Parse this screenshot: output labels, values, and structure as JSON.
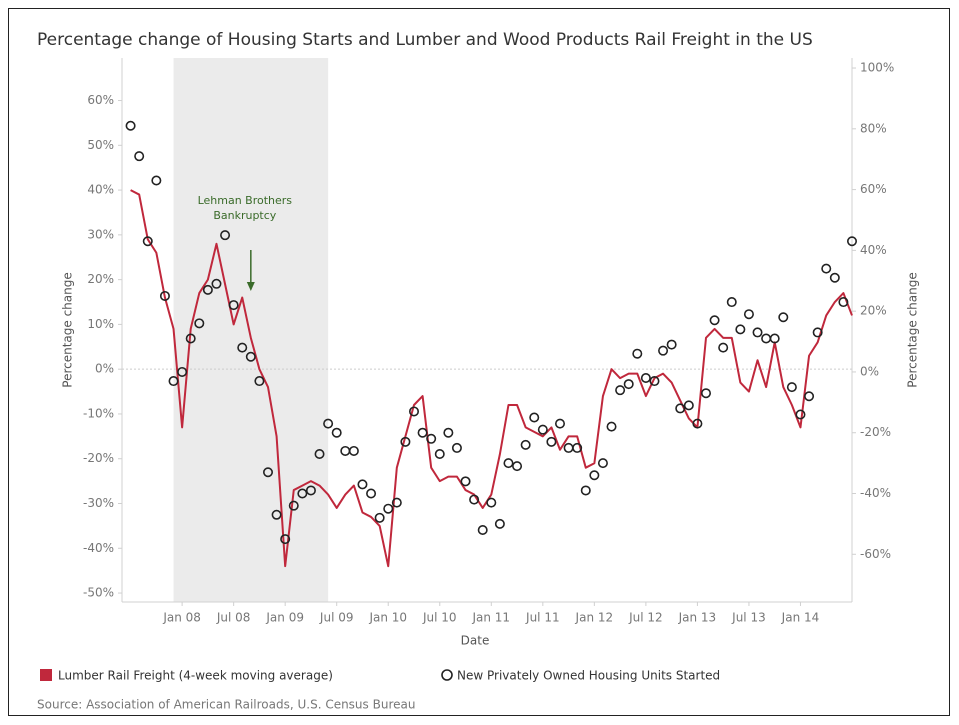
{
  "chart_data": {
    "type": "line",
    "title": "Percentage change of Housing Starts and Lumber and Wood Products Rail Freight in the US",
    "x_label": "Date",
    "y_label": "Percentage change",
    "y2_label": "Percentage change",
    "source": "Source: Association of American Railroads, U.S. Census Bureau",
    "x": [
      "2007-07",
      "2007-08",
      "2007-09",
      "2007-10",
      "2007-11",
      "2007-12",
      "2008-01",
      "2008-02",
      "2008-03",
      "2008-04",
      "2008-05",
      "2008-06",
      "2008-07",
      "2008-08",
      "2008-09",
      "2008-10",
      "2008-11",
      "2008-12",
      "2009-01",
      "2009-02",
      "2009-03",
      "2009-04",
      "2009-05",
      "2009-06",
      "2009-07",
      "2009-08",
      "2009-09",
      "2009-10",
      "2009-11",
      "2009-12",
      "2010-01",
      "2010-02",
      "2010-03",
      "2010-04",
      "2010-05",
      "2010-06",
      "2010-07",
      "2010-08",
      "2010-09",
      "2010-10",
      "2010-11",
      "2010-12",
      "2011-01",
      "2011-02",
      "2011-03",
      "2011-04",
      "2011-05",
      "2011-06",
      "2011-07",
      "2011-08",
      "2011-09",
      "2011-10",
      "2011-11",
      "2011-12",
      "2012-01",
      "2012-02",
      "2012-03",
      "2012-04",
      "2012-05",
      "2012-06",
      "2012-07",
      "2012-08",
      "2012-09",
      "2012-10",
      "2012-11",
      "2012-12",
      "2013-01",
      "2013-02",
      "2013-03",
      "2013-04",
      "2013-05",
      "2013-06",
      "2013-07",
      "2013-08",
      "2013-09",
      "2013-10",
      "2013-11",
      "2013-12",
      "2014-01",
      "2014-02",
      "2014-03",
      "2014-04",
      "2014-05",
      "2014-06",
      "2014-07"
    ],
    "series": [
      {
        "name": "Lumber Rail Freight (4-week moving average)",
        "type": "line",
        "axis": "y",
        "color": "#c0283c",
        "values": [
          40,
          39,
          29,
          26,
          16,
          9,
          -13,
          9,
          17,
          20,
          28,
          19,
          10,
          16,
          7,
          0,
          -4,
          -15,
          -44,
          -27,
          -26,
          -25,
          -26,
          -28,
          -31,
          -28,
          -26,
          -32,
          -33,
          -35,
          -44,
          -22,
          -15,
          -8,
          -6,
          -22,
          -25,
          -24,
          -24,
          -27,
          -28,
          -31,
          -28,
          -19,
          -8,
          -8,
          -13,
          -14,
          -15,
          -13,
          -18,
          -15,
          -15,
          -22,
          -21,
          -6,
          0,
          -2,
          -1,
          -1,
          -6,
          -2,
          -1,
          -3,
          -7,
          -11,
          -13,
          7,
          9,
          7,
          7,
          -3,
          -5,
          2,
          -4,
          6,
          -4,
          -8,
          -13,
          3,
          6,
          12,
          15,
          17,
          12
        ]
      },
      {
        "name": "New Privately Owned Housing Units Started",
        "type": "scatter",
        "axis": "y2",
        "color": "#222222",
        "values": [
          81,
          71,
          43,
          63,
          25,
          -3,
          0,
          11,
          16,
          27,
          29,
          45,
          22,
          8,
          5,
          -3,
          -33,
          -47,
          -55,
          -44,
          -40,
          -39,
          -27,
          -17,
          -20,
          -26,
          -26,
          -37,
          -40,
          -48,
          -45,
          -43,
          -23,
          -13,
          -20,
          -22,
          -27,
          -20,
          -25,
          -36,
          -42,
          -52,
          -43,
          -50,
          -30,
          -31,
          -24,
          -15,
          -19,
          -23,
          -17,
          -25,
          -25,
          -39,
          -34,
          -30,
          -18,
          -6,
          -4,
          6,
          -2,
          -3,
          7,
          9,
          -12,
          -11,
          -17,
          -7,
          17,
          8,
          23,
          14,
          19,
          13,
          11,
          11,
          18,
          -5,
          -14,
          -8,
          13,
          34,
          31,
          23,
          43
        ]
      }
    ],
    "xlim": [
      "2007-06",
      "2014-07"
    ],
    "xticks": [
      {
        "value": "2008-01",
        "label": "Jan 08"
      },
      {
        "value": "2008-07",
        "label": "Jul 08"
      },
      {
        "value": "2009-01",
        "label": "Jan 09"
      },
      {
        "value": "2009-07",
        "label": "Jul 09"
      },
      {
        "value": "2010-01",
        "label": "Jan 10"
      },
      {
        "value": "2010-07",
        "label": "Jul 10"
      },
      {
        "value": "2011-01",
        "label": "Jan 11"
      },
      {
        "value": "2011-07",
        "label": "Jul 11"
      },
      {
        "value": "2012-01",
        "label": "Jan 12"
      },
      {
        "value": "2012-07",
        "label": "Jul 12"
      },
      {
        "value": "2013-01",
        "label": "Jan 13"
      },
      {
        "value": "2013-07",
        "label": "Jul 13"
      },
      {
        "value": "2014-01",
        "label": "Jan 14"
      }
    ],
    "ylim": [
      -52,
      69.5
    ],
    "yticks": [
      {
        "value": 60,
        "label": "60%"
      },
      {
        "value": 50,
        "label": "50%"
      },
      {
        "value": 40,
        "label": "40%"
      },
      {
        "value": 30,
        "label": "30%"
      },
      {
        "value": 20,
        "label": "20%"
      },
      {
        "value": 10,
        "label": "10%"
      },
      {
        "value": 0,
        "label": "0%"
      },
      {
        "value": -10,
        "label": "-10%"
      },
      {
        "value": -20,
        "label": "-20%"
      },
      {
        "value": -30,
        "label": "-30%"
      },
      {
        "value": -40,
        "label": "-40%"
      },
      {
        "value": -50,
        "label": "-50%"
      }
    ],
    "y2lim": [
      -75.7,
      103.3
    ],
    "y2ticks": [
      {
        "value": 100,
        "label": "100%"
      },
      {
        "value": 80,
        "label": "80%"
      },
      {
        "value": 60,
        "label": "60%"
      },
      {
        "value": 40,
        "label": "40%"
      },
      {
        "value": 20,
        "label": "20%"
      },
      {
        "value": 0,
        "label": "0%"
      },
      {
        "value": -20,
        "label": "-20%"
      },
      {
        "value": -40,
        "label": "-40%"
      },
      {
        "value": -60,
        "label": "-60%"
      }
    ],
    "shaded_range": [
      "2007-12",
      "2009-06"
    ],
    "annotation": {
      "lines": [
        "Lehman Brothers",
        "Bankruptcy"
      ],
      "x": "2008-09",
      "color": "#3a6b2a"
    },
    "grid": false
  }
}
